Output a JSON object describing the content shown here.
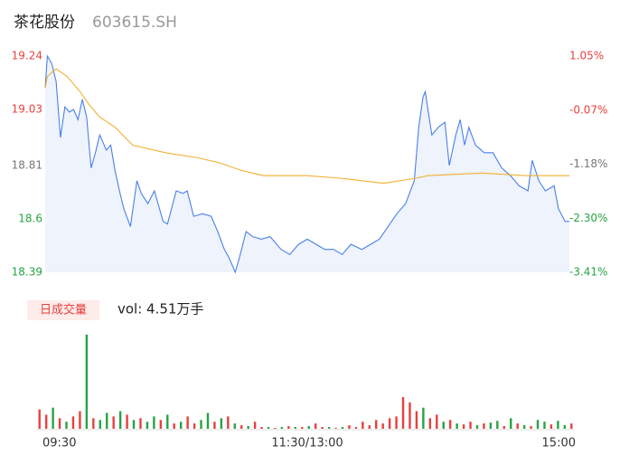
{
  "header": {
    "name": "茶花股份",
    "code": "603615.SH"
  },
  "chart_data": [
    {
      "type": "line",
      "xlim": [
        0,
        240
      ],
      "xticks": [
        {
          "value": 0,
          "label": "09:30"
        },
        {
          "value": 120,
          "label": "11:30/13:00"
        },
        {
          "value": 240,
          "label": "15:00"
        }
      ],
      "ylim": [
        18.39,
        19.24
      ],
      "yticks": [
        19.24,
        19.03,
        18.81,
        18.6,
        18.39
      ],
      "ytick_colors": [
        "#e8403f",
        "#e8403f",
        "#777777",
        "#27a345",
        "#27a345"
      ],
      "y2lim": [
        -3.41,
        1.05
      ],
      "y2ticks": [
        {
          "value": 1.05,
          "label": "1.05%"
        },
        {
          "value": -0.07,
          "label": "-0.07%"
        },
        {
          "value": -1.18,
          "label": "-1.18%"
        },
        {
          "value": -2.3,
          "label": "-2.30%"
        },
        {
          "value": -3.41,
          "label": "-3.41%"
        }
      ],
      "area_fill": "#eef3fc",
      "series": [
        {
          "color": "#4a80e8",
          "x": [
            0,
            1,
            3,
            5,
            7,
            9,
            11,
            13,
            15,
            17,
            19,
            21,
            23,
            25,
            28,
            30,
            32,
            34,
            36,
            39,
            42,
            44,
            47,
            50,
            54,
            56,
            60,
            63,
            65,
            68,
            72,
            76,
            79,
            82,
            84,
            87,
            89,
            92,
            95,
            99,
            103,
            108,
            112,
            116,
            120,
            124,
            128,
            132,
            136,
            140,
            145,
            149,
            153,
            157,
            161,
            165,
            169,
            171,
            173,
            174,
            177,
            180,
            183,
            185,
            188,
            190,
            192,
            194,
            197,
            201,
            205,
            209,
            213,
            217,
            221,
            223,
            226,
            229,
            233,
            235,
            238,
            240
          ],
          "values": [
            19.115,
            19.24,
            19.21,
            19.14,
            18.92,
            19.04,
            19.02,
            19.03,
            18.99,
            19.07,
            19.0,
            18.8,
            18.86,
            18.93,
            18.87,
            18.89,
            18.79,
            18.71,
            18.64,
            18.57,
            18.75,
            18.7,
            18.66,
            18.71,
            18.59,
            18.58,
            18.71,
            18.7,
            18.71,
            18.61,
            18.62,
            18.61,
            18.55,
            18.48,
            18.45,
            18.39,
            18.45,
            18.55,
            18.53,
            18.52,
            18.53,
            18.48,
            18.46,
            18.5,
            18.52,
            18.5,
            18.48,
            18.48,
            18.46,
            18.5,
            18.48,
            18.5,
            18.52,
            18.57,
            18.62,
            18.66,
            18.75,
            18.96,
            19.08,
            19.1,
            18.93,
            18.96,
            18.98,
            18.81,
            18.93,
            18.99,
            18.89,
            18.96,
            18.89,
            18.86,
            18.86,
            18.8,
            18.77,
            18.73,
            18.71,
            18.83,
            18.75,
            18.71,
            18.73,
            18.64,
            18.59,
            18.59
          ]
        },
        {
          "color": "#f0b030",
          "x": [
            0,
            1,
            5,
            10,
            16,
            20,
            25,
            32,
            40,
            55,
            70,
            80,
            90,
            100,
            120,
            135,
            155,
            170,
            175,
            200,
            220,
            240
          ],
          "values": [
            19.115,
            19.16,
            19.19,
            19.16,
            19.1,
            19.05,
            19.0,
            18.96,
            18.89,
            18.86,
            18.84,
            18.82,
            18.79,
            18.77,
            18.77,
            18.76,
            18.74,
            18.76,
            18.77,
            18.78,
            18.77,
            18.77
          ]
        }
      ]
    },
    {
      "type": "bar",
      "legend_label": "日成交量",
      "summary": "vol: 4.51万手",
      "ylim": [
        0,
        110
      ],
      "values": [
        22,
        16,
        24,
        12,
        8,
        14,
        20,
        107,
        12,
        10,
        18,
        14,
        20,
        16,
        10,
        12,
        8,
        14,
        10,
        16,
        6,
        8,
        14,
        6,
        10,
        18,
        8,
        12,
        14,
        6,
        4,
        3,
        8,
        2,
        2,
        1,
        2,
        3,
        2,
        2,
        3,
        6,
        2,
        2,
        1,
        2,
        4,
        2,
        8,
        4,
        10,
        6,
        12,
        14,
        36,
        30,
        20,
        24,
        12,
        16,
        8,
        10,
        6,
        5,
        8,
        4,
        6,
        7,
        9,
        3,
        12,
        6,
        4,
        3,
        10,
        8,
        5,
        9,
        4,
        6
      ],
      "colors": [
        "#e8403f",
        "#e8403f",
        "#27a345",
        "#e8403f",
        "#27a345",
        "#e8403f",
        "#e8403f",
        "#27a345",
        "#e8403f",
        "#27a345",
        "#27a345",
        "#e8403f",
        "#27a345",
        "#e8403f",
        "#27a345",
        "#e8403f",
        "#27a345",
        "#27a345",
        "#e8403f",
        "#27a345",
        "#e8403f",
        "#27a345",
        "#e8403f",
        "#e8403f",
        "#27a345",
        "#27a345",
        "#e8403f",
        "#27a345",
        "#e8403f",
        "#27a345",
        "#e8403f",
        "#27a345",
        "#e8403f",
        "#e8403f",
        "#27a345",
        "#e8403f",
        "#27a345",
        "#e8403f",
        "#27a345",
        "#e8403f",
        "#27a345",
        "#e8403f",
        "#e8403f",
        "#27a345",
        "#e8403f",
        "#27a345",
        "#e8403f",
        "#e8403f",
        "#e8403f",
        "#e8403f",
        "#e8403f",
        "#e8403f",
        "#e8403f",
        "#e8403f",
        "#e8403f",
        "#e8403f",
        "#e8403f",
        "#27a345",
        "#e8403f",
        "#e8403f",
        "#27a345",
        "#e8403f",
        "#27a345",
        "#e8403f",
        "#e8403f",
        "#27a345",
        "#e8403f",
        "#27a345",
        "#27a345",
        "#e8403f",
        "#27a345",
        "#e8403f",
        "#27a345",
        "#e8403f",
        "#27a345",
        "#27a345",
        "#e8403f",
        "#27a345",
        "#27a345",
        "#e8403f"
      ]
    }
  ]
}
